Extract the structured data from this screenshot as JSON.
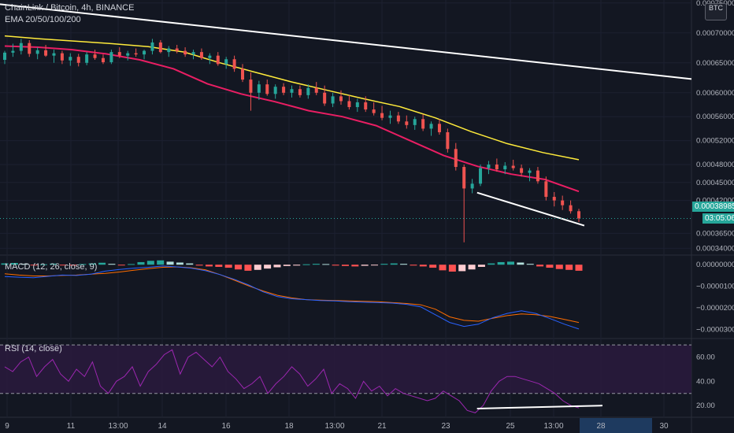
{
  "header": {
    "symbol_title": "ChainLink / Bitcoin, 4h, BINANCE",
    "ema_indicator": "EMA 20/50/100/200",
    "macd_indicator": "MACD (12, 26, close, 9)",
    "rsi_indicator": "RSI (14, close)",
    "currency": "BTC"
  },
  "price_axis": {
    "labels": [
      "0.00075000",
      "0.00070000",
      "0.00065000",
      "0.00060000",
      "0.00056000",
      "0.00052000",
      "0.00048000",
      "0.00045000",
      "0.00042000",
      "0.00036500",
      "0.00034000"
    ],
    "last_price": "0.00038985",
    "countdown": "03:05:06"
  },
  "macd_axis": {
    "labels": [
      "0.00000000",
      "−0.00001000",
      "−0.00002000",
      "−0.00003000"
    ]
  },
  "rsi_axis": {
    "labels": [
      "60.00",
      "40.00",
      "20.00"
    ]
  },
  "time_axis": {
    "labels": [
      "9",
      "11",
      "13:00",
      "14",
      "16",
      "18",
      "13:00",
      "21",
      "23",
      "25",
      "13:00",
      "28",
      "30"
    ]
  },
  "colors": {
    "background": "#131722",
    "up": "#26a69a",
    "down": "#ef5350",
    "ema_fast": "#e91e63",
    "ema_slow": "#ffeb3b",
    "macd_line": "#2962ff",
    "signal_line": "#ff6d00",
    "rsi_line": "#9c27b0",
    "trendline": "#ffffff",
    "last_price_tag": "#26a69a",
    "time_highlight": "#1e3a5f"
  },
  "chart_data": [
    {
      "type": "candlestick",
      "title": "ChainLink / Bitcoin, 4h, BINANCE",
      "ylim": [
        0.00033,
        0.000755
      ],
      "ema_20": [
        0.000678,
        0.000676,
        0.000672,
        0.000665,
        0.000655,
        0.00064,
        0.000615,
        0.000598,
        0.000585,
        0.00057,
        0.00056,
        0.000545,
        0.00052,
        0.000495,
        0.000477,
        0.000464,
        0.000455,
        0.000435
      ],
      "ema_50": [
        0.000695,
        0.00069,
        0.000686,
        0.000682,
        0.000677,
        0.000668,
        0.00065,
        0.000634,
        0.000618,
        0.000604,
        0.00059,
        0.000577,
        0.000558,
        0.000535,
        0.000515,
        0.0005,
        0.000488
      ],
      "candles": [
        [
          0.000655,
          0.00067,
          0.000648,
          0.000667
        ],
        [
          0.000667,
          0.000682,
          0.00066,
          0.00067
        ],
        [
          0.00067,
          0.00069,
          0.000664,
          0.000683
        ],
        [
          0.000683,
          0.000688,
          0.00066,
          0.000665
        ],
        [
          0.000665,
          0.000676,
          0.000656,
          0.000671
        ],
        [
          0.000671,
          0.00068,
          0.00066,
          0.000662
        ],
        [
          0.000662,
          0.000672,
          0.00065,
          0.000666
        ],
        [
          0.000666,
          0.00067,
          0.000648,
          0.000654
        ],
        [
          0.000654,
          0.000666,
          0.000645,
          0.00066
        ],
        [
          0.00066,
          0.000665,
          0.000644,
          0.00065
        ],
        [
          0.00065,
          0.000668,
          0.000646,
          0.000664
        ],
        [
          0.000664,
          0.000672,
          0.000655,
          0.000658
        ],
        [
          0.000658,
          0.000664,
          0.000648,
          0.000651
        ],
        [
          0.000651,
          0.000672,
          0.000648,
          0.000668
        ],
        [
          0.000668,
          0.000676,
          0.000658,
          0.000662
        ],
        [
          0.000662,
          0.00067,
          0.000654,
          0.000666
        ],
        [
          0.000666,
          0.000674,
          0.00066,
          0.000664
        ],
        [
          0.000664,
          0.000672,
          0.000656,
          0.00067
        ],
        [
          0.00067,
          0.00069,
          0.000664,
          0.000684
        ],
        [
          0.000684,
          0.000688,
          0.000666,
          0.000668
        ],
        [
          0.000668,
          0.000678,
          0.00066,
          0.000674
        ],
        [
          0.000674,
          0.00068,
          0.000666,
          0.00067
        ],
        [
          0.00067,
          0.000676,
          0.00066,
          0.000664
        ],
        [
          0.000664,
          0.000672,
          0.000656,
          0.000668
        ],
        [
          0.000668,
          0.000674,
          0.000655,
          0.000658
        ],
        [
          0.000658,
          0.000666,
          0.000648,
          0.000662
        ],
        [
          0.000662,
          0.000668,
          0.000645,
          0.000648
        ],
        [
          0.000648,
          0.00066,
          0.00064,
          0.000656
        ],
        [
          0.000656,
          0.000662,
          0.000635,
          0.00064
        ],
        [
          0.00064,
          0.000648,
          0.000618,
          0.000622
        ],
        [
          0.000622,
          0.000634,
          0.00057,
          0.0006
        ],
        [
          0.0006,
          0.00062,
          0.000588,
          0.000614
        ],
        [
          0.000614,
          0.000622,
          0.000595,
          0.000598
        ],
        [
          0.000598,
          0.000614,
          0.00059,
          0.00061
        ],
        [
          0.00061,
          0.000616,
          0.000596,
          0.0006
        ],
        [
          0.0006,
          0.000612,
          0.000592,
          0.000606
        ],
        [
          0.000606,
          0.000612,
          0.000592,
          0.000596
        ],
        [
          0.000596,
          0.000614,
          0.00059,
          0.000608
        ],
        [
          0.000608,
          0.000618,
          0.000596,
          0.0006
        ],
        [
          0.0006,
          0.000612,
          0.000578,
          0.000582
        ],
        [
          0.000582,
          0.0006,
          0.000576,
          0.000594
        ],
        [
          0.000594,
          0.000604,
          0.00058,
          0.000586
        ],
        [
          0.000586,
          0.000596,
          0.000572,
          0.000576
        ],
        [
          0.000576,
          0.00059,
          0.000568,
          0.000584
        ],
        [
          0.000584,
          0.000594,
          0.000568,
          0.000572
        ],
        [
          0.000572,
          0.000584,
          0.000562,
          0.000566
        ],
        [
          0.000566,
          0.000578,
          0.000554,
          0.000558
        ],
        [
          0.000558,
          0.00057,
          0.000548,
          0.000562
        ],
        [
          0.000562,
          0.000568,
          0.000548,
          0.000552
        ],
        [
          0.000552,
          0.000562,
          0.00054,
          0.000546
        ],
        [
          0.000546,
          0.00056,
          0.000538,
          0.000556
        ],
        [
          0.000556,
          0.000564,
          0.000536,
          0.00054
        ],
        [
          0.00054,
          0.000552,
          0.000528,
          0.000548
        ],
        [
          0.000548,
          0.000556,
          0.00053,
          0.000534
        ],
        [
          0.000534,
          0.00054,
          0.0005,
          0.000506
        ],
        [
          0.000506,
          0.000516,
          0.00047,
          0.000476
        ],
        [
          0.000476,
          0.00048,
          0.00035,
          0.00044
        ],
        [
          0.00044,
          0.000456,
          0.000432,
          0.000448
        ],
        [
          0.000448,
          0.00048,
          0.000444,
          0.000474
        ],
        [
          0.000474,
          0.000486,
          0.000464,
          0.00048
        ],
        [
          0.00048,
          0.00049,
          0.000468,
          0.000472
        ],
        [
          0.000472,
          0.000484,
          0.000464,
          0.000478
        ],
        [
          0.000478,
          0.000488,
          0.00047,
          0.000474
        ],
        [
          0.000474,
          0.00048,
          0.00046,
          0.000466
        ],
        [
          0.000466,
          0.000474,
          0.000452,
          0.00047
        ],
        [
          0.00047,
          0.000476,
          0.000448,
          0.000452
        ],
        [
          0.000452,
          0.00046,
          0.00042,
          0.000426
        ],
        [
          0.000426,
          0.000434,
          0.00041,
          0.00042
        ],
        [
          0.00042,
          0.000428,
          0.000404,
          0.000412
        ],
        [
          0.000412,
          0.00042,
          0.000398,
          0.000402
        ],
        [
          0.000402,
          0.000406,
          0.000384,
          0.00039
        ]
      ],
      "trendlines": [
        {
          "from": [
            0,
            0.000748
          ],
          "to": [
            1.0,
            0.000623
          ]
        },
        {
          "from": [
            0.69,
            0.000433
          ],
          "to": [
            0.845,
            0.000378
          ]
        }
      ],
      "last_price": 0.00038985
    },
    {
      "type": "bar",
      "title": "MACD (12, 26, close, 9)",
      "ylim": [
        -3.35e-05,
        3e-06
      ],
      "histogram": [
        6e-07,
        8e-07,
        4e-07,
        -3e-07,
        2e-07,
        5e-07,
        -2e-07,
        -4e-07,
        3e-07,
        6e-07,
        9e-07,
        4e-07,
        -2e-07,
        3e-07,
        1.2e-06,
        1.8e-06,
        2e-06,
        1.4e-06,
        1e-06,
        6e-07,
        -4e-07,
        -8e-07,
        -1e-06,
        -1.4e-06,
        -2.2e-06,
        -2.8e-06,
        -2.4e-06,
        -1.8e-06,
        -1.2e-06,
        -6e-07,
        -4e-07,
        2e-07,
        4e-07,
        3e-07,
        -4e-07,
        -6e-07,
        -8e-07,
        -5e-07,
        -3e-07,
        4e-07,
        6e-07,
        4e-07,
        -4e-07,
        -8e-07,
        -1.4e-06,
        -2.6e-06,
        -3.2e-06,
        -3e-06,
        -2.2e-06,
        -1e-06,
        6e-07,
        1.2e-06,
        1.4e-06,
        1e-06,
        4e-07,
        -8e-07,
        -1.4e-06,
        -2e-06,
        -2.4e-06,
        -2.8e-06
      ],
      "macd": [
        -5.5e-06,
        -5.8e-06,
        -6e-06,
        -5.4e-06,
        -4.8e-06,
        -5e-06,
        -4.4e-06,
        -3e-06,
        -2.2e-06,
        -1.6e-06,
        -1.2e-06,
        -6e-07,
        -1e-06,
        -1.6e-06,
        -2.8e-06,
        -4.6e-06,
        -6.8e-06,
        -9.4e-06,
        -1.26e-05,
        -1.48e-05,
        -1.58e-05,
        -1.62e-05,
        -1.66e-05,
        -1.68e-05,
        -1.72e-05,
        -1.74e-05,
        -1.76e-05,
        -1.78e-05,
        -1.84e-05,
        -1.96e-05,
        -2.32e-05,
        -2.68e-05,
        -2.86e-05,
        -2.76e-05,
        -2.46e-05,
        -2.26e-05,
        -2.14e-05,
        -2.26e-05,
        -2.5e-05,
        -2.76e-05,
        -2.98e-05
      ],
      "signal": [
        -4.2e-06,
        -4.8e-06,
        -5.2e-06,
        -5.2e-06,
        -5e-06,
        -4.8e-06,
        -4.4e-06,
        -4e-06,
        -3.4e-06,
        -2.6e-06,
        -1.8e-06,
        -1.2e-06,
        -1e-06,
        -1.4e-06,
        -2.4e-06,
        -4.6e-06,
        -7.2e-06,
        -9.8e-06,
        -1.22e-05,
        -1.42e-05,
        -1.54e-05,
        -1.62e-05,
        -1.64e-05,
        -1.66e-05,
        -1.68e-05,
        -1.7e-05,
        -1.72e-05,
        -1.76e-05,
        -1.8e-05,
        -1.86e-05,
        -2.06e-05,
        -2.42e-05,
        -2.58e-05,
        -2.62e-05,
        -2.48e-05,
        -2.36e-05,
        -2.28e-05,
        -2.32e-05,
        -2.4e-05,
        -2.54e-05,
        -2.68e-05
      ]
    },
    {
      "type": "line",
      "title": "RSI (14, close)",
      "ylim": [
        11,
        74
      ],
      "bands": [
        70,
        30
      ],
      "rsi": [
        52,
        48,
        56,
        60,
        44,
        52,
        58,
        46,
        40,
        50,
        44,
        56,
        36,
        30,
        40,
        44,
        52,
        36,
        48,
        54,
        62,
        66,
        46,
        60,
        64,
        58,
        52,
        60,
        48,
        42,
        34,
        38,
        44,
        30,
        38,
        44,
        52,
        46,
        36,
        42,
        50,
        30,
        38,
        34,
        26,
        40,
        32,
        36,
        28,
        34,
        30,
        28,
        26,
        24,
        26,
        32,
        28,
        24,
        16,
        14,
        20,
        32,
        40,
        44,
        44,
        42,
        40,
        38,
        34,
        30,
        24,
        20,
        18
      ],
      "trendline": {
        "from": [
          0.65,
          17.5
        ],
        "to": [
          0.82,
          20
        ]
      }
    }
  ]
}
